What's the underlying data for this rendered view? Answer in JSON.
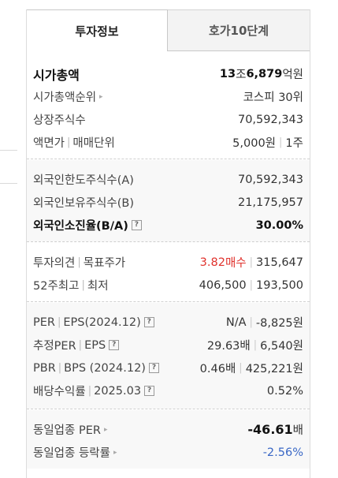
{
  "tabs": {
    "invest_info": "투자정보",
    "order_book": "호가10단계"
  },
  "market": {
    "market_cap_label": "시가총액",
    "market_cap_num1": "13",
    "market_cap_unit1": "조 ",
    "market_cap_num2": "6,879",
    "market_cap_unit2": "억원",
    "rank_label": "시가총액순위",
    "rank_value": "코스피 30위",
    "shares_label": "상장주식수",
    "shares_value": "70,592,343",
    "facevalue_label": "액면가",
    "trading_unit_label": "매매단위",
    "facevalue_value": "5,000원",
    "trading_unit_value": "1주"
  },
  "foreign": {
    "limit_label": "외국인한도주식수(A)",
    "limit_value": "70,592,343",
    "held_label": "외국인보유주식수(B)",
    "held_value": "21,175,957",
    "ratio_label": "외국인소진율(B/A)",
    "ratio_value": "30.00%"
  },
  "opinion": {
    "opinion_label": "투자의견",
    "target_label": "목표주가",
    "opinion_score": "3.82",
    "opinion_text": "매수",
    "target_value": "315,647",
    "high52_label": "52주최고",
    "low52_label": "최저",
    "high52_value": "406,500",
    "low52_value": "193,500"
  },
  "valuation": {
    "per_label": "PER",
    "eps_label": "EPS(2024.12)",
    "per_value": "N/A",
    "eps_value": "-8,825원",
    "est_per_label": "추정PER",
    "est_eps_label": "EPS",
    "est_per_value": "29.63배",
    "est_eps_value": "6,540원",
    "pbr_label": "PBR",
    "bps_label": "BPS (2024.12)",
    "pbr_value": "0.46배",
    "bps_value": "425,221원",
    "div_label": "배당수익률",
    "div_date": "2025.03",
    "div_value": "0.52%"
  },
  "industry": {
    "per_label": "동일업종 PER",
    "per_num": "-46.61",
    "per_unit": "배",
    "change_label": "동일업종 등락률",
    "change_value": "-2.56%"
  },
  "icons": {
    "help": "?",
    "arrow": "▸"
  },
  "colors": {
    "up": "#e0322d",
    "down": "#3a68c6"
  }
}
